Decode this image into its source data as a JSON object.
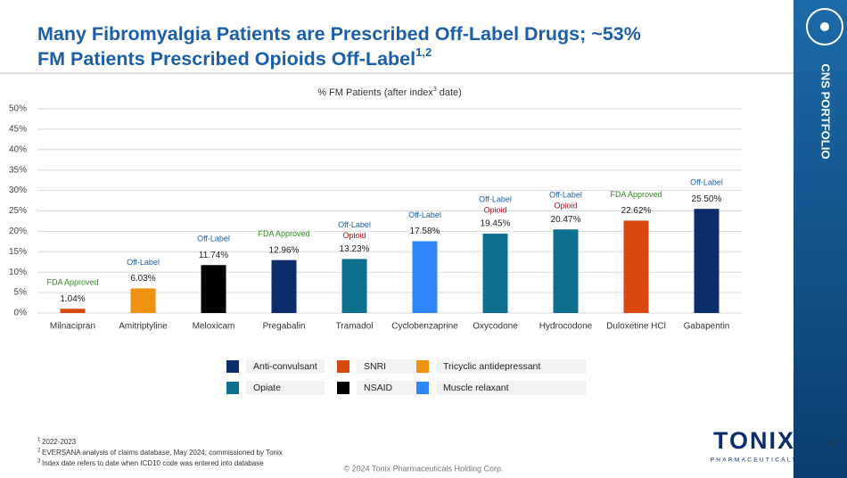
{
  "slide": {
    "title_lines": [
      "Many Fibromyalgia Patients are Prescribed Off-Label Drugs; ~53%",
      "FM Patients Prescribed Opioids Off-Label"
    ],
    "title_sup": "1,2",
    "side_label": "CNS PORTFOLIO",
    "page_number": "49",
    "copyright": "© 2024 Tonix Pharmaceuticals Holding Corp.",
    "logo": {
      "name": "TONIX",
      "tagline": "PHARMACEUTICALS"
    },
    "footnotes": [
      {
        "mark": "1",
        "text": "2022-2023"
      },
      {
        "mark": "2",
        "text": "EVERSANA analysis of claims database, May 2024; commissioned by Tonix"
      },
      {
        "mark": "3",
        "text": "Index date refers to date when ICD10 code was entered into database"
      }
    ]
  },
  "chart_data": {
    "type": "bar",
    "title": "% FM Patients (after index",
    "title_sup": "3",
    "title_end": "date)",
    "categories": [
      "Milnacipran",
      "Amitriptyline",
      "Meloxicam",
      "Pregabalin",
      "Tramadol",
      "Cyclobenzaprine",
      "Oxycodone",
      "Hydrocodone",
      "Duloxetine HCl",
      "Gabapentin"
    ],
    "values": [
      1.04,
      6.03,
      11.74,
      12.96,
      13.23,
      17.58,
      19.45,
      20.47,
      22.62,
      25.5
    ],
    "value_labels": [
      "1.04%",
      "6.03%",
      "11.74%",
      "12.96%",
      "13.23%",
      "17.58%",
      "19.45%",
      "20.47%",
      "22.62%",
      "25.50%"
    ],
    "colors": [
      "#d9480f",
      "#f0920f",
      "#000000",
      "#0b2d6b",
      "#0e6f8f",
      "#2f86f6",
      "#0e6f8f",
      "#0e6f8f",
      "#d9480f",
      "#0b2d6b"
    ],
    "status": [
      "FDA Approved",
      "Off-Label",
      "Off-Label",
      "FDA Approved",
      "Off-Label",
      "Off-Label",
      "Off-Label",
      "Off-Label",
      "FDA Approved",
      "Off-Label"
    ],
    "opioid": [
      null,
      null,
      null,
      null,
      "Opioid",
      null,
      "Opioid",
      "Opioid",
      null,
      null
    ],
    "ylim": [
      0,
      50
    ],
    "yticks": [
      {
        "value": 0,
        "label": "0%"
      },
      {
        "value": 5,
        "label": "5%"
      },
      {
        "value": 10,
        "label": "10%"
      },
      {
        "value": 15,
        "label": "15%"
      },
      {
        "value": 20,
        "label": "20%"
      },
      {
        "value": 25,
        "label": "25%"
      },
      {
        "value": 30,
        "label": "30%"
      },
      {
        "value": 35,
        "label": "35%"
      },
      {
        "value": 40,
        "label": "40%"
      },
      {
        "value": 45,
        "label": "45%"
      },
      {
        "value": 50,
        "label": "50%"
      }
    ],
    "grid": true,
    "legend": [
      {
        "name": "Anti-convulsant",
        "color": "#0b2d6b"
      },
      {
        "name": "SNRI",
        "color": "#d9480f"
      },
      {
        "name": "Tricyclic antidepressant",
        "color": "#f0920f"
      },
      {
        "name": "Opiate",
        "color": "#0e6f8f"
      },
      {
        "name": "NSAID",
        "color": "#000000"
      },
      {
        "name": "Muscle relaxant",
        "color": "#2f86f6"
      }
    ]
  }
}
